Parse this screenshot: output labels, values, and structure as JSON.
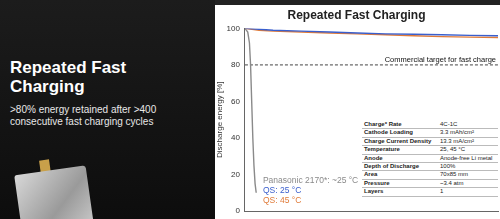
{
  "slide": {
    "heading": "Repeated Fast Charging",
    "text": ">80% energy retained after >400 consecutive fast charging cycles"
  },
  "chart_data": {
    "type": "line",
    "title": "Repeated Fast Charging",
    "y_label": "Discharge energy [%]",
    "xlim": [
      0,
      450
    ],
    "ylim": [
      0,
      100
    ],
    "yticks": [
      0,
      20,
      40,
      60,
      80,
      100
    ],
    "grid": false,
    "tick_labels": "y",
    "legend": "lower left",
    "series": [
      {
        "name": "Panasonic 2170*: ~25 °C",
        "color": "#8a8a8a",
        "x": [
          0,
          5,
          8,
          10,
          12,
          14,
          16,
          18,
          20
        ],
        "values": [
          100,
          98,
          92,
          80,
          60,
          40,
          25,
          15,
          10
        ]
      },
      {
        "name": "QS: 25 °C",
        "color": "#3a5fcd",
        "x": [
          0,
          25,
          50,
          100,
          150,
          200,
          250,
          300,
          350,
          400,
          450
        ],
        "values": [
          100,
          99.5,
          99,
          98.5,
          98,
          97.5,
          97,
          96.8,
          96.5,
          96.2,
          96
        ]
      },
      {
        "name": "QS: 45 °C",
        "color": "#e07b39",
        "x": [
          0,
          25,
          50,
          100,
          150,
          200,
          250,
          300,
          350,
          400,
          450
        ],
        "values": [
          100,
          99,
          98.5,
          98,
          97.5,
          97,
          96.5,
          96,
          95.5,
          95.2,
          95
        ]
      }
    ],
    "annotations": [
      {
        "text": "Commercial target for fast charge",
        "y": 80,
        "line_style": "dashed"
      }
    ],
    "table": {
      "rows": [
        [
          "Charge* Rate",
          "4C-1C"
        ],
        [
          "Cathode Loading",
          "3.3 mAh/cm²"
        ],
        [
          "Charge Current Density",
          "13.3 mA/cm²"
        ],
        [
          "Temperature",
          "25, 45 °C"
        ],
        [
          "Anode",
          "Anode-free Li metal"
        ],
        [
          "Depth of Discharge",
          "100%"
        ],
        [
          "Area",
          "70x85 mm"
        ],
        [
          "Pressure",
          "~3.4 atm"
        ],
        [
          "Layers",
          "1"
        ]
      ]
    }
  }
}
